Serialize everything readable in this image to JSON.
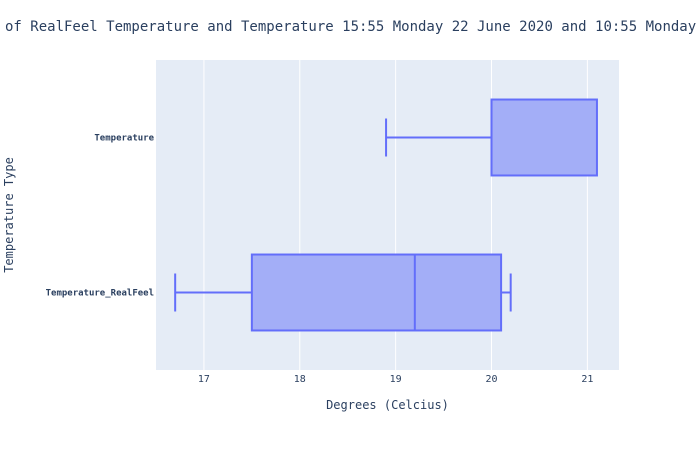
{
  "chart_data": {
    "type": "box",
    "orientation": "horizontal",
    "title": "of RealFeel Temperature and Temperature 15:55 Monday 22 June 2020 and 10:55 Monday",
    "xlabel": "Degrees (Celcius)",
    "ylabel": "Temperature Type",
    "xlim": [
      16.5,
      21.33
    ],
    "xticks": [
      "17",
      "18",
      "19",
      "20",
      "21"
    ],
    "grid": true,
    "legend": "none",
    "colors": {
      "plot_bg": "#e5ecf6",
      "box_fill": "#a3aef7",
      "box_line": "#636efa",
      "grid": "#ffffff",
      "text": "#2a3f5f"
    },
    "categories": [
      "Temperature",
      "Temperature_RealFeel"
    ],
    "boxes": [
      {
        "category": "Temperature",
        "lower_whisker": 18.9,
        "q1": 20.0,
        "median": 20.0,
        "q3": 21.1,
        "upper_whisker": 21.1
      },
      {
        "category": "Temperature_RealFeel",
        "lower_whisker": 16.7,
        "q1": 17.5,
        "median": 19.2,
        "q3": 20.1,
        "upper_whisker": 20.2
      }
    ]
  }
}
